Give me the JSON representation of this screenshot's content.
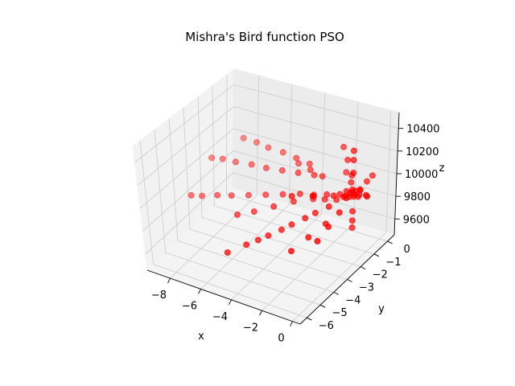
{
  "chart_data": {
    "type": "scatter3d",
    "title": "Mishra's Bird function PSO",
    "xlabel": "x",
    "ylabel": "y",
    "zlabel": "z",
    "xlim": [
      -9.5,
      0.5
    ],
    "ylim": [
      -6.5,
      0.5
    ],
    "zlim": [
      9460,
      10540
    ],
    "xticks": [
      -8,
      -6,
      -4,
      -2,
      0
    ],
    "yticks": [
      -6,
      -5,
      -4,
      -3,
      -2,
      -1,
      0
    ],
    "zticks": [
      9600,
      9800,
      10000,
      10200,
      10400
    ],
    "marker_color": "#ff0000",
    "grid": true,
    "points": [
      [
        -0.4,
        -1.5,
        9993
      ],
      [
        -0.6,
        -1.6,
        10001
      ],
      [
        -0.2,
        -1.4,
        9986
      ],
      [
        -0.7,
        -1.3,
        9999
      ],
      [
        -0.5,
        -1.8,
        9994
      ],
      [
        -0.3,
        -1.2,
        10000
      ],
      [
        -0.8,
        -1.7,
        9980
      ],
      [
        -0.45,
        -1.55,
        10005
      ],
      [
        -0.55,
        -1.45,
        9990
      ],
      [
        -0.35,
        -1.65,
        10006
      ],
      [
        -0.65,
        -1.35,
        9985
      ],
      [
        -0.25,
        -1.75,
        10002
      ],
      [
        -0.9,
        -1.5,
        9997
      ],
      [
        -0.4,
        -1.1,
        9989
      ],
      [
        -0.5,
        -2.0,
        10004
      ],
      [
        -0.1,
        -1.6,
        9991
      ],
      [
        -0.75,
        -1.9,
        9995
      ],
      [
        -0.6,
        -1.2,
        9982
      ],
      [
        -1.3,
        -1.5,
        9955
      ],
      [
        -2.1,
        -1.5,
        9920
      ],
      [
        -2.9,
        -1.5,
        9885
      ],
      [
        -0.4,
        -2.6,
        9945
      ],
      [
        -0.4,
        -3.4,
        9905
      ],
      [
        -0.4,
        -4.2,
        9865
      ],
      [
        0.3,
        -1.5,
        10010
      ],
      [
        0.45,
        -1.6,
        10015
      ],
      [
        -0.4,
        -0.6,
        10010
      ],
      [
        -0.4,
        -0.2,
        10020
      ],
      [
        -0.5,
        -1.5,
        10170
      ],
      [
        -0.5,
        -1.5,
        10280
      ],
      [
        -0.5,
        -1.5,
        10360
      ],
      [
        -0.5,
        -1.5,
        9840
      ],
      [
        -0.5,
        -1.5,
        9760
      ],
      [
        -0.5,
        -1.5,
        9700
      ],
      [
        -1.3,
        -2.3,
        9930
      ],
      [
        -2.1,
        -3.1,
        9880
      ],
      [
        -2.9,
        -3.9,
        9830
      ],
      [
        -3.7,
        -4.7,
        9790
      ],
      [
        -1.2,
        -0.8,
        9990
      ],
      [
        -2.0,
        -0.2,
        9985
      ],
      [
        -1.1,
        -2.2,
        10020
      ],
      [
        -1.8,
        -2.9,
        10060
      ],
      [
        -2.5,
        -3.6,
        10100
      ],
      [
        -1.5,
        -1.5,
        9900
      ],
      [
        -2.3,
        -1.4,
        9860
      ],
      [
        -3.1,
        -1.3,
        9820
      ],
      [
        -1.0,
        -1.0,
        10080
      ],
      [
        -1.6,
        -0.6,
        10150
      ],
      [
        -2.2,
        -0.2,
        10200
      ],
      [
        -4.0,
        -0.5,
        10010
      ],
      [
        -4.9,
        -0.4,
        10015
      ],
      [
        -5.8,
        -0.3,
        10020
      ],
      [
        -6.7,
        -0.3,
        10025
      ],
      [
        -7.5,
        -0.2,
        10030
      ],
      [
        -8.3,
        -0.2,
        10035
      ],
      [
        -3.3,
        -1.0,
        9990
      ],
      [
        -4.2,
        -1.1,
        9985
      ],
      [
        -5.1,
        -1.2,
        9980
      ],
      [
        -6.0,
        -1.3,
        9975
      ],
      [
        -6.9,
        -1.3,
        9970
      ],
      [
        -7.8,
        -1.4,
        9965
      ],
      [
        -8.6,
        -1.4,
        9960
      ],
      [
        -9.2,
        -1.5,
        9955
      ],
      [
        -3.5,
        -1.8,
        9900
      ],
      [
        -4.4,
        -2.0,
        9880
      ],
      [
        -5.3,
        -2.2,
        9860
      ],
      [
        -6.2,
        -2.4,
        9840
      ],
      [
        -7.1,
        -2.6,
        9820
      ],
      [
        -7.9,
        -2.7,
        9800
      ],
      [
        -8.7,
        -2.9,
        9780
      ],
      [
        -9.3,
        -3.0,
        9770
      ],
      [
        -2.5,
        -2.0,
        9940
      ],
      [
        -3.4,
        -2.4,
        9900
      ],
      [
        -4.3,
        -2.8,
        9860
      ],
      [
        -5.2,
        -3.2,
        9820
      ],
      [
        -6.0,
        -3.5,
        9790
      ],
      [
        -1.8,
        -2.7,
        9895
      ],
      [
        -2.6,
        -3.5,
        9845
      ],
      [
        -3.4,
        -4.3,
        9800
      ],
      [
        -4.2,
        -5.0,
        9760
      ],
      [
        -4.9,
        -5.6,
        9725
      ],
      [
        -0.9,
        -3.0,
        9870
      ],
      [
        -1.3,
        -3.8,
        9820
      ],
      [
        -1.7,
        -4.6,
        9770
      ],
      [
        -2.8,
        -1.0,
        10000
      ],
      [
        -3.7,
        -0.8,
        10000
      ],
      [
        -4.6,
        -0.6,
        10000
      ]
    ]
  }
}
